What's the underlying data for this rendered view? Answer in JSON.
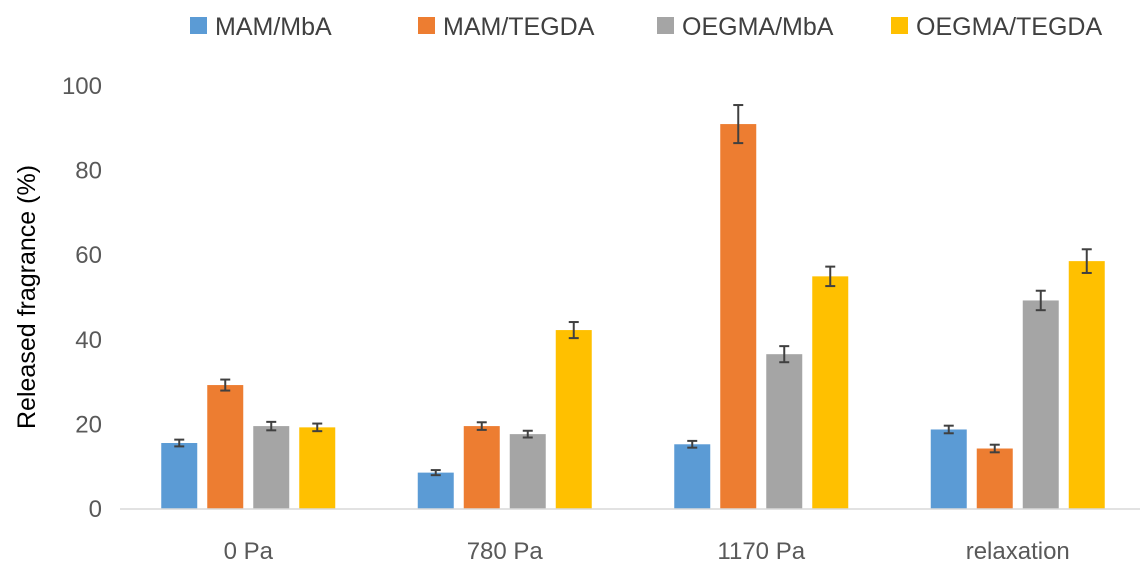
{
  "chart_data": {
    "type": "bar",
    "title": "",
    "xlabel": "",
    "ylabel": "Released fragrance (%)",
    "ylim": [
      0,
      100
    ],
    "yticks": [
      0,
      20,
      40,
      60,
      80,
      100
    ],
    "categories": [
      "0 Pa",
      "780 Pa",
      "1170 Pa",
      "relaxation"
    ],
    "grid": false,
    "legend": "top",
    "series": [
      {
        "name": "MAM/MbA",
        "color": "#5B9BD5",
        "values": [
          15.6,
          8.6,
          15.3,
          18.8
        ],
        "errors": [
          0.8,
          0.6,
          0.8,
          0.9
        ]
      },
      {
        "name": "MAM/TEGDA",
        "color": "#ED7D31",
        "values": [
          29.3,
          19.6,
          91.0,
          14.3
        ],
        "errors": [
          1.3,
          0.9,
          4.5,
          0.9
        ]
      },
      {
        "name": "OEGMA/MbA",
        "color": "#A5A5A5",
        "values": [
          19.6,
          17.7,
          36.6,
          49.3
        ],
        "errors": [
          1.0,
          0.8,
          1.9,
          2.3
        ]
      },
      {
        "name": "OEGMA/TEGDA",
        "color": "#FFC000",
        "values": [
          19.3,
          42.3,
          55.0,
          58.6
        ],
        "errors": [
          0.9,
          1.9,
          2.3,
          2.8
        ]
      }
    ]
  }
}
